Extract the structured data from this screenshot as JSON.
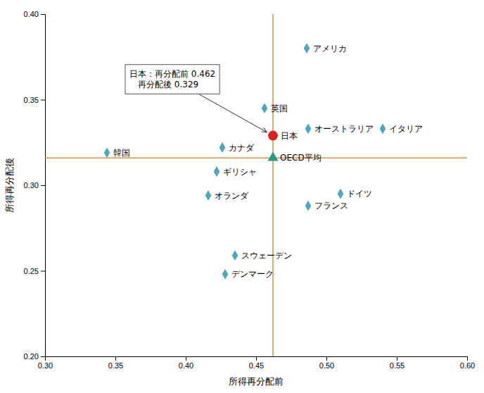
{
  "chart_data": {
    "type": "scatter",
    "xlabel": "所得再分配前",
    "ylabel": "所得再分配後",
    "xlim": [
      0.3,
      0.6
    ],
    "ylim": [
      0.2,
      0.4
    ],
    "xticks": [
      {
        "value": 0.3,
        "label": "0.30"
      },
      0.35,
      {
        "value": 0.4,
        "label": "0.40"
      },
      0.45,
      {
        "value": 0.5,
        "label": "0.50"
      },
      0.55,
      {
        "value": 0.6,
        "label": "0.60"
      }
    ],
    "yticks": [
      {
        "value": 0.2,
        "label": "0.20"
      },
      0.25,
      {
        "value": 0.3,
        "label": "0.30"
      },
      0.35,
      {
        "value": 0.4,
        "label": "0.40"
      }
    ],
    "grid": false,
    "series": [
      {
        "labels": [
          "アメリカ",
          "英国",
          "イタリア",
          "オーストラリア",
          "カナダ",
          "韓国",
          "ギリシャ",
          "オランダ",
          "ドイツ",
          "フランス",
          "スウェーデン",
          "デンマーク"
        ],
        "x": [
          0.486,
          0.456,
          0.54,
          0.487,
          0.426,
          0.344,
          0.422,
          0.416,
          0.51,
          0.487,
          0.435,
          0.428
        ],
        "values": [
          0.38,
          0.345,
          0.333,
          0.333,
          0.322,
          0.319,
          0.308,
          0.294,
          0.295,
          0.288,
          0.259,
          0.248
        ],
        "color": "#4da6bf",
        "marker": "diamond"
      },
      {
        "labels": [
          "日本"
        ],
        "x": [
          0.462
        ],
        "values": [
          0.329
        ],
        "color": "#dd2222",
        "marker": "circle"
      },
      {
        "labels": [
          "OECD平均"
        ],
        "x": [
          0.462
        ],
        "values": [
          0.316
        ],
        "color": "#2a9a80",
        "marker": "triangle"
      }
    ],
    "reference_lines": [
      {
        "axis": "x",
        "value": 0.462,
        "color": "#e07820"
      },
      {
        "axis": "y",
        "value": 0.316,
        "color": "#e07820"
      }
    ],
    "annotations": [
      {
        "text": [
          "日本：再分配前 0.462",
          "　再分配後 0.329"
        ],
        "x": 0.462,
        "y": 0.329
      }
    ]
  }
}
